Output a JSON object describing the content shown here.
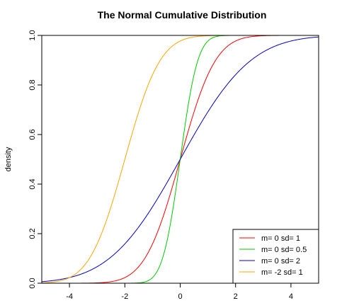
{
  "chart_data": {
    "type": "line",
    "title": "The Normal Cumulative Distribution",
    "xlabel": "",
    "ylabel": "density",
    "xlim": [
      -5,
      5
    ],
    "ylim": [
      0,
      1
    ],
    "x_ticks": [
      -4,
      -2,
      0,
      2,
      4
    ],
    "y_ticks": [
      0.0,
      0.2,
      0.4,
      0.6,
      0.8,
      1.0
    ],
    "x_tick_labels": [
      "-4",
      "-2",
      "0",
      "2",
      "4"
    ],
    "y_tick_labels": [
      "0.0",
      "0.2",
      "0.4",
      "0.6",
      "0.8",
      "1.0"
    ],
    "grid": false,
    "legend_position": "bottom-right",
    "series": [
      {
        "name": "m= 0  sd= 1",
        "mean": 0,
        "sd": 1,
        "color": "#ff0000"
      },
      {
        "name": "m= 0  sd= 0.5",
        "mean": 0,
        "sd": 0.5,
        "color": "#00cc00"
      },
      {
        "name": "m= 0  sd= 2",
        "mean": 0,
        "sd": 2,
        "color": "#0000cc"
      },
      {
        "name": "m= -2  sd= 1",
        "mean": -2,
        "sd": 1,
        "color": "#ffa500"
      }
    ]
  }
}
